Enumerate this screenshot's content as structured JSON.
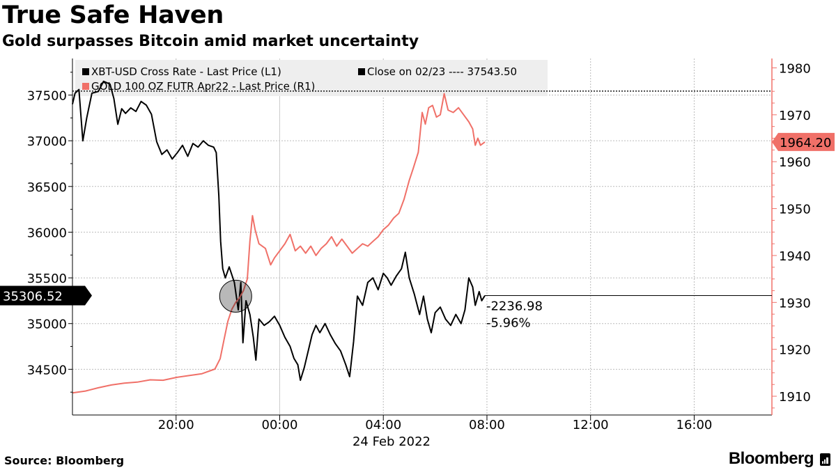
{
  "header": {
    "title": "True Safe Haven",
    "subtitle": "Gold surpasses Bitcoin amid market uncertainty"
  },
  "footer": {
    "source": "Source: Bloomberg",
    "brand": "Bloomberg"
  },
  "colors": {
    "btc": "#000000",
    "gold": "#f07068",
    "grid": "#bbbbbb",
    "legend_bg": "#eeeeee"
  },
  "chart_data": {
    "type": "line",
    "legend": [
      {
        "label": "XBT-USD Cross Rate - Last Price (L1)",
        "color": "#000000"
      },
      {
        "label": "Close on 02/23 ---- 37543.50",
        "color": "#000000"
      },
      {
        "label": "GOLD 100 OZ FUTR Apr22 - Last Price (R1)",
        "color": "#f07068"
      }
    ],
    "x_axis": {
      "ticks": [
        {
          "label": "20:00",
          "hour": 20
        },
        {
          "label": "00:00",
          "hour": 24
        },
        {
          "label": "04:00",
          "hour": 28
        },
        {
          "label": "08:00",
          "hour": 32
        },
        {
          "label": "12:00",
          "hour": 36
        },
        {
          "label": "16:00",
          "hour": 40
        }
      ],
      "date_label": "24 Feb 2022",
      "range_hours": [
        16,
        43
      ]
    },
    "left_axis": {
      "ticks": [
        34500,
        35000,
        35500,
        36000,
        36500,
        37000,
        37500
      ],
      "range": [
        34000,
        37900
      ]
    },
    "right_axis": {
      "ticks": [
        1910,
        1920,
        1930,
        1940,
        1950,
        1960,
        1970,
        1980
      ],
      "range": [
        1906,
        1982
      ]
    },
    "reference_line": {
      "value": 37543.5,
      "axis": "left"
    },
    "last_price_btc": "35306.52",
    "last_price_gold": "1964.20",
    "change_abs": "-2236.98",
    "change_pct": "-5.96%",
    "crossover": {
      "hour": 22.3,
      "value": 35300
    },
    "series": [
      {
        "name": "XBT-USD Cross Rate - Last Price (L1)",
        "axis": "left",
        "color": "#000000",
        "points": [
          [
            16.0,
            37400
          ],
          [
            16.1,
            37520
          ],
          [
            16.25,
            37560
          ],
          [
            16.4,
            37000
          ],
          [
            16.55,
            37250
          ],
          [
            16.75,
            37520
          ],
          [
            17.0,
            37540
          ],
          [
            17.2,
            37650
          ],
          [
            17.45,
            37620
          ],
          [
            17.6,
            37460
          ],
          [
            17.75,
            37180
          ],
          [
            17.9,
            37350
          ],
          [
            18.05,
            37300
          ],
          [
            18.25,
            37360
          ],
          [
            18.45,
            37320
          ],
          [
            18.65,
            37430
          ],
          [
            18.85,
            37390
          ],
          [
            19.05,
            37290
          ],
          [
            19.25,
            36990
          ],
          [
            19.45,
            36850
          ],
          [
            19.65,
            36900
          ],
          [
            19.85,
            36800
          ],
          [
            20.05,
            36870
          ],
          [
            20.25,
            36950
          ],
          [
            20.45,
            36830
          ],
          [
            20.65,
            36970
          ],
          [
            20.85,
            36930
          ],
          [
            21.05,
            37000
          ],
          [
            21.25,
            36950
          ],
          [
            21.45,
            36930
          ],
          [
            21.55,
            36870
          ],
          [
            21.65,
            36400
          ],
          [
            21.72,
            35900
          ],
          [
            21.8,
            35600
          ],
          [
            21.9,
            35500
          ],
          [
            22.05,
            35620
          ],
          [
            22.25,
            35450
          ],
          [
            22.4,
            35150
          ],
          [
            22.5,
            35450
          ],
          [
            22.58,
            34790
          ],
          [
            22.7,
            35250
          ],
          [
            22.85,
            35100
          ],
          [
            22.98,
            34850
          ],
          [
            23.08,
            34600
          ],
          [
            23.2,
            35050
          ],
          [
            23.4,
            34980
          ],
          [
            23.6,
            35020
          ],
          [
            23.8,
            35080
          ],
          [
            24.0,
            34980
          ],
          [
            24.2,
            34850
          ],
          [
            24.4,
            34750
          ],
          [
            24.55,
            34620
          ],
          [
            24.7,
            34550
          ],
          [
            24.8,
            34380
          ],
          [
            24.95,
            34520
          ],
          [
            25.1,
            34700
          ],
          [
            25.25,
            34880
          ],
          [
            25.4,
            34980
          ],
          [
            25.55,
            34900
          ],
          [
            25.75,
            35000
          ],
          [
            25.95,
            34880
          ],
          [
            26.15,
            34780
          ],
          [
            26.35,
            34700
          ],
          [
            26.55,
            34550
          ],
          [
            26.7,
            34420
          ],
          [
            26.85,
            34800
          ],
          [
            27.0,
            35300
          ],
          [
            27.2,
            35200
          ],
          [
            27.4,
            35450
          ],
          [
            27.6,
            35500
          ],
          [
            27.8,
            35370
          ],
          [
            28.0,
            35550
          ],
          [
            28.15,
            35500
          ],
          [
            28.3,
            35420
          ],
          [
            28.5,
            35520
          ],
          [
            28.7,
            35600
          ],
          [
            28.85,
            35780
          ],
          [
            29.0,
            35500
          ],
          [
            29.2,
            35320
          ],
          [
            29.4,
            35100
          ],
          [
            29.55,
            35300
          ],
          [
            29.7,
            35050
          ],
          [
            29.85,
            34900
          ],
          [
            30.0,
            35120
          ],
          [
            30.2,
            35180
          ],
          [
            30.4,
            35050
          ],
          [
            30.6,
            34980
          ],
          [
            30.8,
            35100
          ],
          [
            31.0,
            35000
          ],
          [
            31.15,
            35150
          ],
          [
            31.3,
            35500
          ],
          [
            31.45,
            35400
          ],
          [
            31.55,
            35200
          ],
          [
            31.7,
            35350
          ],
          [
            31.8,
            35250
          ],
          [
            31.92,
            35306
          ]
        ]
      },
      {
        "name": "GOLD 100 OZ FUTR Apr22 - Last Price (R1)",
        "axis": "right",
        "color": "#f07068",
        "points": [
          [
            16.0,
            1910.7
          ],
          [
            16.5,
            1911.1
          ],
          [
            17.0,
            1911.8
          ],
          [
            17.5,
            1912.4
          ],
          [
            18.0,
            1912.8
          ],
          [
            18.5,
            1913.0
          ],
          [
            19.0,
            1913.5
          ],
          [
            19.5,
            1913.4
          ],
          [
            20.0,
            1914.0
          ],
          [
            20.5,
            1914.4
          ],
          [
            21.0,
            1914.8
          ],
          [
            21.5,
            1915.8
          ],
          [
            21.7,
            1918.0
          ],
          [
            21.85,
            1922.0
          ],
          [
            22.0,
            1926.0
          ],
          [
            22.15,
            1928.5
          ],
          [
            22.3,
            1930.0
          ],
          [
            22.45,
            1931.0
          ],
          [
            22.6,
            1932.5
          ],
          [
            22.75,
            1935.0
          ],
          [
            22.85,
            1943.0
          ],
          [
            22.95,
            1948.5
          ],
          [
            23.05,
            1945.5
          ],
          [
            23.2,
            1942.5
          ],
          [
            23.45,
            1941.5
          ],
          [
            23.65,
            1938.0
          ],
          [
            23.8,
            1939.5
          ],
          [
            24.0,
            1941.0
          ],
          [
            24.2,
            1942.5
          ],
          [
            24.4,
            1944.5
          ],
          [
            24.6,
            1941.0
          ],
          [
            24.8,
            1942.0
          ],
          [
            25.0,
            1940.5
          ],
          [
            25.2,
            1942.0
          ],
          [
            25.4,
            1940.0
          ],
          [
            25.6,
            1941.5
          ],
          [
            25.8,
            1942.5
          ],
          [
            26.0,
            1944.0
          ],
          [
            26.2,
            1942.0
          ],
          [
            26.4,
            1943.5
          ],
          [
            26.6,
            1942.0
          ],
          [
            26.8,
            1940.5
          ],
          [
            27.0,
            1941.5
          ],
          [
            27.2,
            1942.5
          ],
          [
            27.4,
            1942.0
          ],
          [
            27.6,
            1943.0
          ],
          [
            27.8,
            1944.0
          ],
          [
            28.0,
            1945.5
          ],
          [
            28.2,
            1946.5
          ],
          [
            28.4,
            1948.0
          ],
          [
            28.6,
            1949.0
          ],
          [
            28.8,
            1952.0
          ],
          [
            29.0,
            1956.0
          ],
          [
            29.15,
            1958.5
          ],
          [
            29.35,
            1962.0
          ],
          [
            29.5,
            1970.5
          ],
          [
            29.62,
            1968.0
          ],
          [
            29.75,
            1971.5
          ],
          [
            29.9,
            1972.0
          ],
          [
            30.05,
            1969.5
          ],
          [
            30.2,
            1970.0
          ],
          [
            30.35,
            1974.5
          ],
          [
            30.5,
            1971.0
          ],
          [
            30.7,
            1970.5
          ],
          [
            30.9,
            1971.5
          ],
          [
            31.1,
            1970.0
          ],
          [
            31.3,
            1968.5
          ],
          [
            31.45,
            1967.0
          ],
          [
            31.55,
            1963.5
          ],
          [
            31.65,
            1965.0
          ],
          [
            31.75,
            1963.5
          ],
          [
            31.92,
            1964.2
          ]
        ]
      }
    ]
  }
}
